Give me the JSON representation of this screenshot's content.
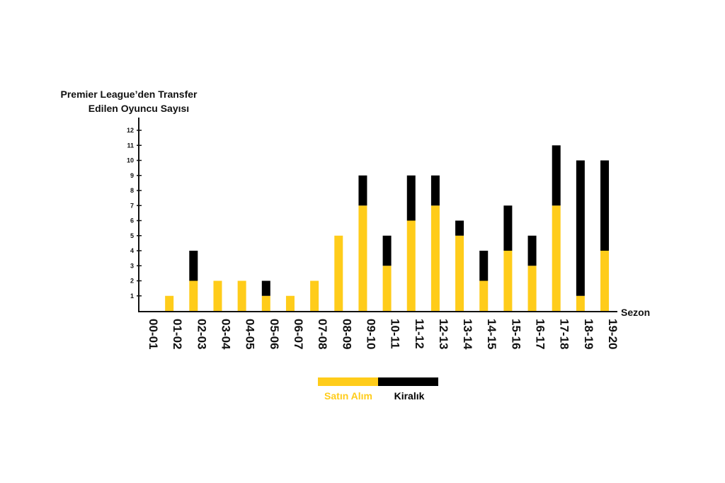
{
  "chart_data": {
    "type": "bar",
    "stacked": true,
    "title": "Premier League’den Transfer Edilen Oyuncu Sayısı",
    "title_lines": [
      "Premier League’den Transfer",
      "Edilen Oyuncu Sayısı"
    ],
    "xlabel": "Sezon",
    "ylabel": "",
    "ylim": [
      0,
      12
    ],
    "yticks": [
      1,
      2,
      3,
      4,
      5,
      6,
      7,
      8,
      9,
      10,
      11,
      12
    ],
    "categories": [
      "00-01",
      "01-02",
      "02-03",
      "03-04",
      "04-05",
      "05-06",
      "06-07",
      "07-08",
      "08-09",
      "09-10",
      "10-11",
      "11-12",
      "12-13",
      "13-14",
      "14-15",
      "15-16",
      "16-17",
      "17-18",
      "18-19",
      "19-20"
    ],
    "series": [
      {
        "name": "Satın Alım",
        "color": "#FFCC1A",
        "values": [
          0,
          1,
          2,
          2,
          2,
          1,
          1,
          2,
          5,
          7,
          3,
          6,
          7,
          5,
          2,
          4,
          3,
          7,
          1,
          4
        ]
      },
      {
        "name": "Kiralık",
        "color": "#000000",
        "values": [
          0,
          0,
          2,
          0,
          0,
          1,
          0,
          0,
          0,
          2,
          2,
          3,
          2,
          1,
          2,
          3,
          2,
          4,
          9,
          6
        ]
      }
    ],
    "grid": false,
    "legend_position": "bottom-center"
  }
}
